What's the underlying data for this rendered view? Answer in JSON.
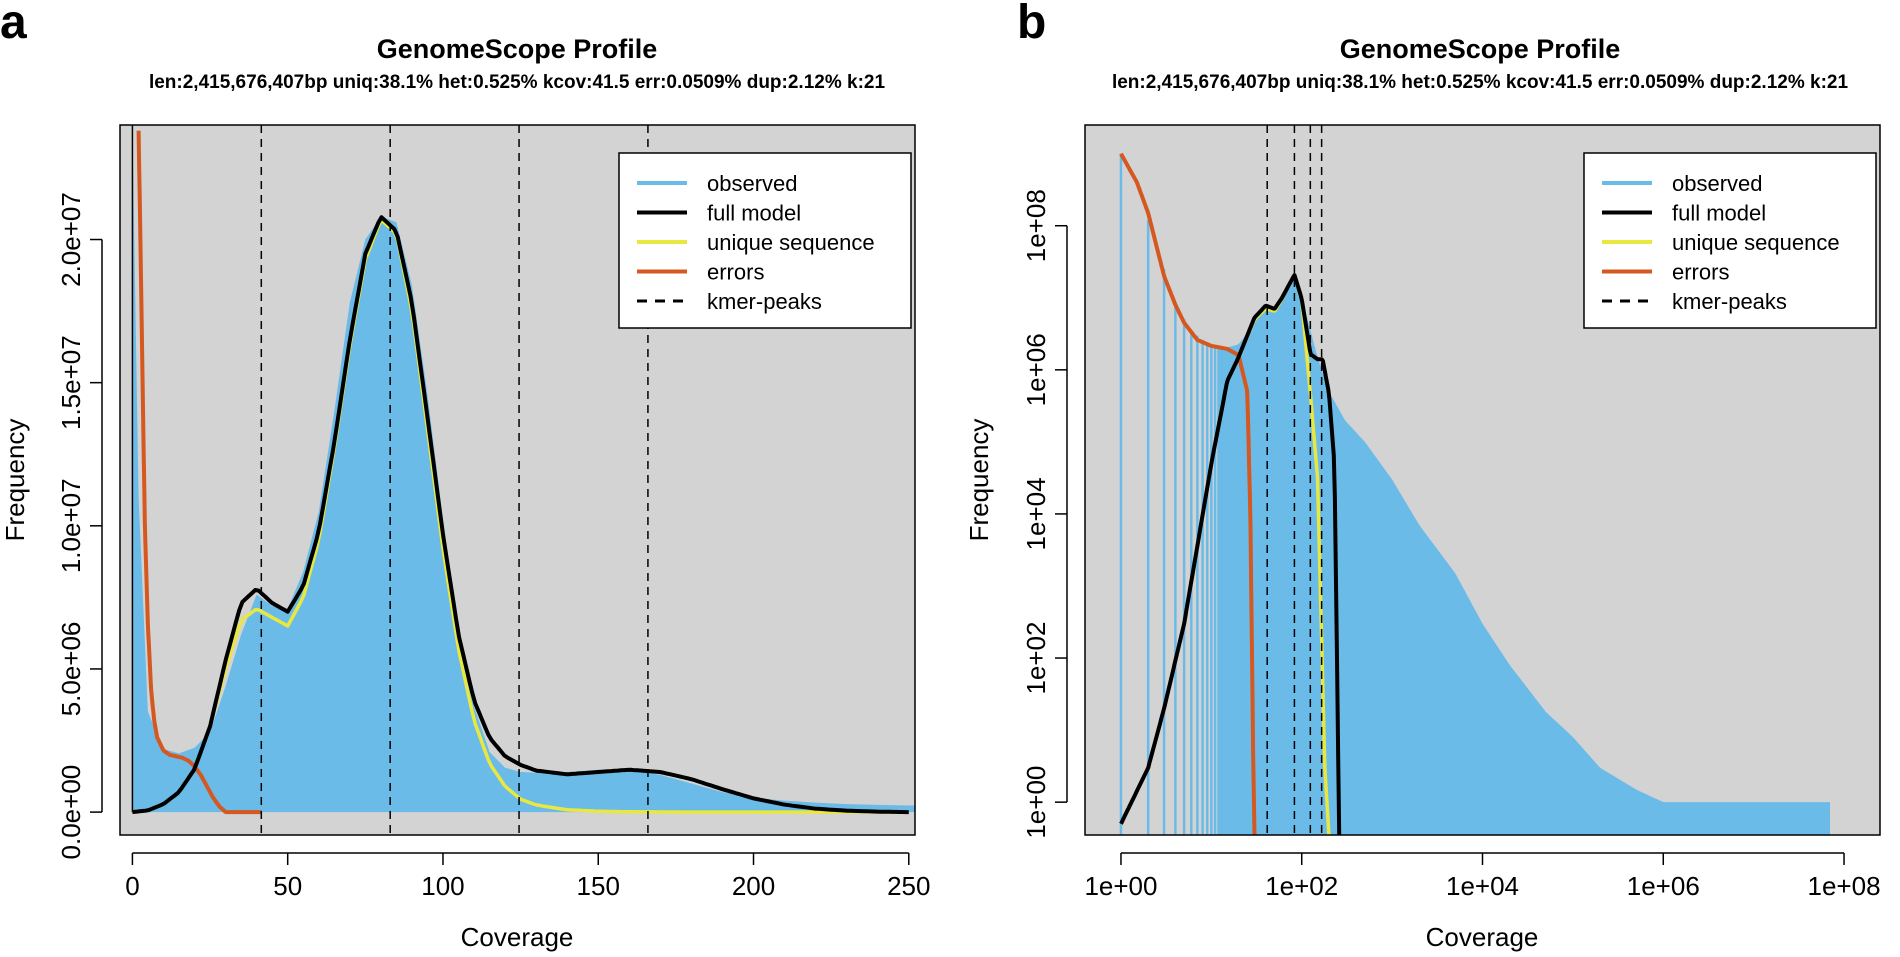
{
  "colors": {
    "observed": "#6bbbe8",
    "full_model": "#000000",
    "unique_sequence": "#e8e840",
    "errors": "#d4581f",
    "kmer_peaks": "#000000",
    "plot_background": "#d3d3d3"
  },
  "chart_data": [
    {
      "panel": "a",
      "type": "area",
      "title": "GenomeScope Profile",
      "subtitle": "len:2,415,676,407bp uniq:38.1%  het:0.525% kcov:41.5 err:0.0509%  dup:2.12%  k:21",
      "xlabel": "Coverage",
      "ylabel": "Frequency",
      "xlim": [
        -4,
        252
      ],
      "ylim": [
        -800000,
        24000000
      ],
      "xscale": "linear",
      "yscale": "linear",
      "xticks": [
        0,
        50,
        100,
        150,
        200,
        250
      ],
      "xtick_labels": [
        "0",
        "50",
        "100",
        "150",
        "200",
        "250"
      ],
      "yticks": [
        0,
        5000000,
        10000000,
        15000000,
        20000000
      ],
      "ytick_labels": [
        "0.0e+00",
        "5.0e+06",
        "1.0e+07",
        "1.5e+07",
        "2.0e+07"
      ],
      "legend": [
        "observed",
        "full model",
        "unique sequence",
        "errors",
        "kmer-peaks"
      ],
      "legend_position": "top-right",
      "kmer_peaks": [
        41.5,
        83,
        124.5,
        166
      ],
      "series": [
        {
          "name": "observed",
          "x": [
            0,
            2,
            5,
            10,
            15,
            20,
            25,
            30,
            35,
            40,
            45,
            50,
            55,
            60,
            65,
            70,
            75,
            80,
            85,
            90,
            95,
            100,
            105,
            110,
            115,
            120,
            125,
            130,
            140,
            150,
            160,
            170,
            180,
            190,
            200,
            210,
            220,
            230,
            240,
            250
          ],
          "y": [
            24000000,
            11000000,
            3500000,
            2200000,
            2050000,
            2250000,
            2800000,
            4400000,
            6200000,
            7600000,
            7200000,
            7100000,
            8400000,
            10500000,
            14000000,
            17800000,
            20000000,
            20800000,
            20600000,
            18400000,
            14600000,
            10200000,
            6300000,
            3700000,
            2100000,
            1550000,
            1400000,
            1380000,
            1400000,
            1480000,
            1480000,
            1300000,
            1000000,
            700000,
            500000,
            400000,
            330000,
            280000,
            250000,
            230000
          ]
        },
        {
          "name": "full model",
          "x": [
            0,
            5,
            10,
            15,
            20,
            25,
            30,
            35,
            40,
            45,
            50,
            55,
            60,
            65,
            70,
            75,
            80,
            85,
            90,
            95,
            100,
            105,
            110,
            115,
            120,
            125,
            130,
            140,
            150,
            160,
            170,
            180,
            190,
            200,
            210,
            220,
            230,
            240,
            250
          ],
          "y": [
            0,
            60000,
            280000,
            700000,
            1500000,
            3000000,
            5300000,
            7300000,
            7800000,
            7300000,
            7000000,
            7900000,
            9800000,
            12900000,
            16500000,
            19500000,
            20800000,
            20300000,
            17800000,
            13800000,
            9700000,
            6200000,
            3900000,
            2600000,
            1950000,
            1650000,
            1450000,
            1320000,
            1400000,
            1480000,
            1400000,
            1150000,
            800000,
            480000,
            260000,
            120000,
            50000,
            15000,
            0
          ]
        },
        {
          "name": "unique sequence",
          "x": [
            0,
            5,
            10,
            15,
            20,
            25,
            30,
            35,
            40,
            45,
            50,
            55,
            60,
            65,
            70,
            75,
            80,
            85,
            90,
            95,
            100,
            105,
            110,
            115,
            120,
            125,
            130,
            140,
            150,
            160,
            180,
            200,
            220,
            250
          ],
          "y": [
            0,
            60000,
            280000,
            700000,
            1500000,
            3000000,
            5000000,
            6700000,
            7100000,
            6800000,
            6500000,
            7500000,
            9500000,
            12700000,
            16300000,
            19300000,
            20700000,
            20200000,
            17500000,
            13400000,
            9200000,
            5700000,
            3200000,
            1700000,
            900000,
            450000,
            250000,
            80000,
            30000,
            10000,
            0,
            0,
            0,
            0
          ]
        },
        {
          "name": "errors",
          "x": [
            2,
            3,
            4,
            5,
            6,
            7,
            8,
            10,
            12,
            14,
            16,
            18,
            20,
            22,
            24,
            26,
            28,
            30,
            32,
            34,
            36,
            38,
            40,
            41.5
          ],
          "y": [
            23800000,
            17000000,
            10000000,
            6500000,
            4300000,
            3200000,
            2600000,
            2150000,
            2000000,
            1950000,
            1900000,
            1800000,
            1600000,
            1300000,
            900000,
            500000,
            200000,
            0,
            0,
            0,
            0,
            0,
            0,
            0
          ]
        }
      ]
    },
    {
      "panel": "b",
      "type": "area",
      "title": "GenomeScope Profile",
      "subtitle": "len:2,415,676,407bp uniq:38.1%   het:0.525% kcov:41.5 err:0.0509%   dup:2.12%   k:21",
      "xlabel": "Coverage",
      "ylabel": "Frequency",
      "xlim": [
        0.4,
        250000000
      ],
      "ylim": [
        0.35,
        2500000000
      ],
      "xscale": "log",
      "yscale": "log",
      "xticks": [
        1,
        100,
        10000,
        1000000,
        100000000
      ],
      "xtick_labels": [
        "1e+00",
        "1e+02",
        "1e+04",
        "1e+06",
        "1e+08"
      ],
      "yticks": [
        1,
        100,
        10000,
        1000000,
        100000000
      ],
      "ytick_labels": [
        "1e+00",
        "1e+02",
        "1e+04",
        "1e+06",
        "1e+08"
      ],
      "legend": [
        "observed",
        "full model",
        "unique sequence",
        "errors",
        "kmer-peaks"
      ],
      "legend_position": "top-right",
      "kmer_peaks": [
        41.5,
        83,
        124.5,
        166
      ],
      "series": [
        {
          "name": "observed",
          "x": [
            1,
            2,
            3,
            4,
            5,
            6,
            8,
            10,
            15,
            20,
            30,
            40,
            50,
            60,
            83,
            100,
            150,
            200,
            300,
            500,
            1000,
            2000,
            5000,
            10000,
            20000,
            50000,
            100000,
            200000,
            500000,
            1000000,
            2000000,
            5000000,
            10000000,
            50000000,
            70000000
          ],
          "y": [
            1000000000,
            120000000,
            25000000,
            8000000,
            5000000,
            3500000,
            2600000,
            2200000,
            2050000,
            2250000,
            4400000,
            7600000,
            7100000,
            10500000,
            20800000,
            10200000,
            1480000,
            500000,
            200000,
            100000,
            30000,
            7000,
            1500,
            300,
            80,
            18,
            8,
            3,
            1.5,
            1,
            1,
            1,
            1,
            1,
            1
          ]
        },
        {
          "name": "full model",
          "x": [
            1,
            2,
            3,
            5,
            10,
            15,
            20,
            30,
            40,
            50,
            60,
            83,
            100,
            125,
            150,
            170,
            200,
            230,
            260
          ],
          "y": [
            0.5,
            3,
            20,
            300,
            50000,
            700000,
            1500000,
            5300000,
            7800000,
            7000000,
            9800000,
            20800000,
            9700000,
            1650000,
            1400000,
            1400000,
            480000,
            50000,
            0.35
          ]
        },
        {
          "name": "unique sequence",
          "x": [
            1,
            2,
            3,
            5,
            10,
            15,
            20,
            30,
            40,
            50,
            60,
            83,
            100,
            125,
            150,
            180,
            200
          ],
          "y": [
            0.5,
            3,
            20,
            300,
            50000,
            700000,
            1500000,
            5000000,
            7100000,
            6500000,
            9500000,
            20700000,
            9200000,
            450000,
            30000,
            3,
            0.35
          ]
        },
        {
          "name": "errors",
          "x": [
            1,
            1.5,
            2,
            3,
            4,
            5,
            7,
            10,
            15,
            20,
            25,
            27,
            29,
            30
          ],
          "y": [
            1000000000,
            400000000,
            150000000,
            20000000,
            8000000,
            4500000,
            2600000,
            2150000,
            1950000,
            1600000,
            500000,
            10000,
            5,
            0.35
          ]
        }
      ]
    }
  ]
}
